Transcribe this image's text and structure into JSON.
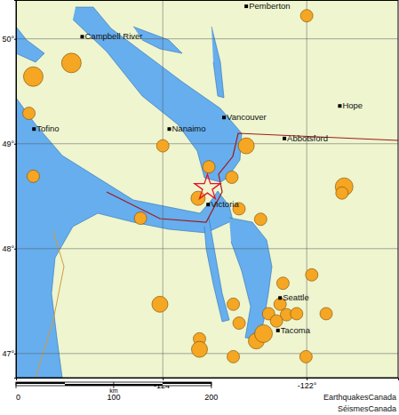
{
  "chart_data": {
    "type": "map",
    "xlim": [
      -126.04,
      -120.73
    ],
    "ylim": [
      46.77,
      50.37
    ],
    "xticks": [
      {
        "value": -124,
        "label": "-124°"
      },
      {
        "value": -122,
        "label": "-122°"
      }
    ],
    "yticks": [
      {
        "value": 47,
        "label": "47°"
      },
      {
        "value": 48,
        "label": "48°"
      },
      {
        "value": 49,
        "label": "49°"
      },
      {
        "value": 50,
        "label": "50°"
      }
    ],
    "grid": true,
    "color": "#f5a623",
    "cities": [
      {
        "name": "Pemberton",
        "lon": -122.84,
        "lat": 50.31
      },
      {
        "name": "Campbell River",
        "lon": -125.12,
        "lat": 50.02
      },
      {
        "name": "Nanaimo",
        "lon": -123.91,
        "lat": 49.14
      },
      {
        "name": "Vancouver",
        "lon": -123.15,
        "lat": 49.25
      },
      {
        "name": "Abbotsford",
        "lon": -122.31,
        "lat": 49.05
      },
      {
        "name": "Hope",
        "lon": -121.54,
        "lat": 49.36
      },
      {
        "name": "Tofino",
        "lon": -125.79,
        "lat": 49.14
      },
      {
        "name": "Victoria",
        "lon": -123.37,
        "lat": 48.42
      },
      {
        "name": "Seattle",
        "lon": -122.37,
        "lat": 47.53
      },
      {
        "name": "Tacoma",
        "lon": -122.4,
        "lat": 47.22
      }
    ],
    "earthquakes": {
      "lon": [
        -122.0,
        -125.27,
        -125.8,
        -125.86,
        -125.8,
        -124.0,
        -122.84,
        -123.36,
        -123.04,
        -123.51,
        -122.94,
        -121.48,
        -121.51,
        -124.31,
        -122.64,
        -124.04,
        -121.93,
        -122.33,
        -123.02,
        -123.49,
        -123.49,
        -123.02,
        -122.94,
        -122.53,
        -122.37,
        -122.28,
        -122.14,
        -121.73,
        -122.7,
        -122.6,
        -122.01,
        -122.42
      ],
      "lat": [
        50.22,
        49.77,
        49.64,
        49.29,
        48.69,
        48.98,
        48.98,
        48.78,
        48.68,
        48.48,
        48.38,
        48.59,
        48.53,
        48.29,
        48.28,
        47.47,
        47.75,
        47.67,
        47.47,
        47.14,
        47.04,
        46.97,
        47.29,
        47.38,
        47.47,
        47.37,
        47.38,
        47.38,
        47.12,
        47.19,
        46.97,
        47.31
      ],
      "size": [
        3,
        4,
        4,
        3,
        3,
        3,
        3.5,
        3,
        3,
        3.25,
        3,
        3.75,
        3,
        3,
        3,
        3.5,
        3,
        3,
        3,
        3,
        3.5,
        3,
        3,
        3,
        3,
        3,
        3,
        3,
        3.5,
        3.75,
        3,
        3
      ]
    },
    "epicenter": {
      "lon": -123.38,
      "lat": 48.58
    },
    "scale_bar": {
      "label": "km",
      "ticks": [
        0,
        100,
        200
      ]
    },
    "credits": [
      "EarthquakesCanada",
      "SéismesCanada"
    ]
  }
}
